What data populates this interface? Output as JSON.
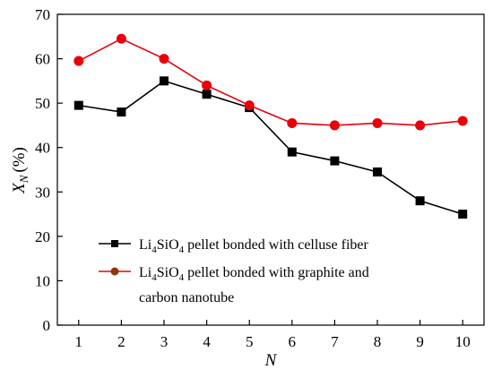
{
  "chart_data": {
    "type": "line",
    "x": [
      1,
      2,
      3,
      4,
      5,
      6,
      7,
      8,
      9,
      10
    ],
    "xlim": [
      0.5,
      10.5
    ],
    "ylim": [
      0,
      70
    ],
    "x_ticks": [
      "1",
      "2",
      "3",
      "4",
      "5",
      "6",
      "7",
      "8",
      "9",
      "10"
    ],
    "y_ticks": [
      "0",
      "10",
      "20",
      "30",
      "40",
      "50",
      "60",
      "70"
    ],
    "xlabel": "N",
    "ylabel": {
      "main": "X",
      "sub": "N",
      "unit": "(%)"
    },
    "grid": false,
    "legend_position": "lower-left",
    "series": [
      {
        "name_parts": {
          "pre": "Li",
          "sub1": "4",
          "mid": "SiO",
          "sub2": "4",
          "post": " pellet bonded with celluse fiber"
        },
        "values": [
          49.5,
          48,
          55,
          52,
          49,
          39,
          37,
          34.5,
          28,
          25
        ],
        "color": "#000000",
        "marker": "square"
      },
      {
        "name_parts": {
          "pre": "Li",
          "sub1": "4",
          "mid": "SiO",
          "sub2": "4",
          "post": " pellet bonded with graphite and",
          "line2": "carbon nanotube"
        },
        "values": [
          59.5,
          64.5,
          60,
          54,
          49.5,
          45.5,
          45,
          45.5,
          45,
          46
        ],
        "color": "#e8000b",
        "marker": "circle",
        "legend_marker_color": "#8b3a0a"
      }
    ]
  }
}
